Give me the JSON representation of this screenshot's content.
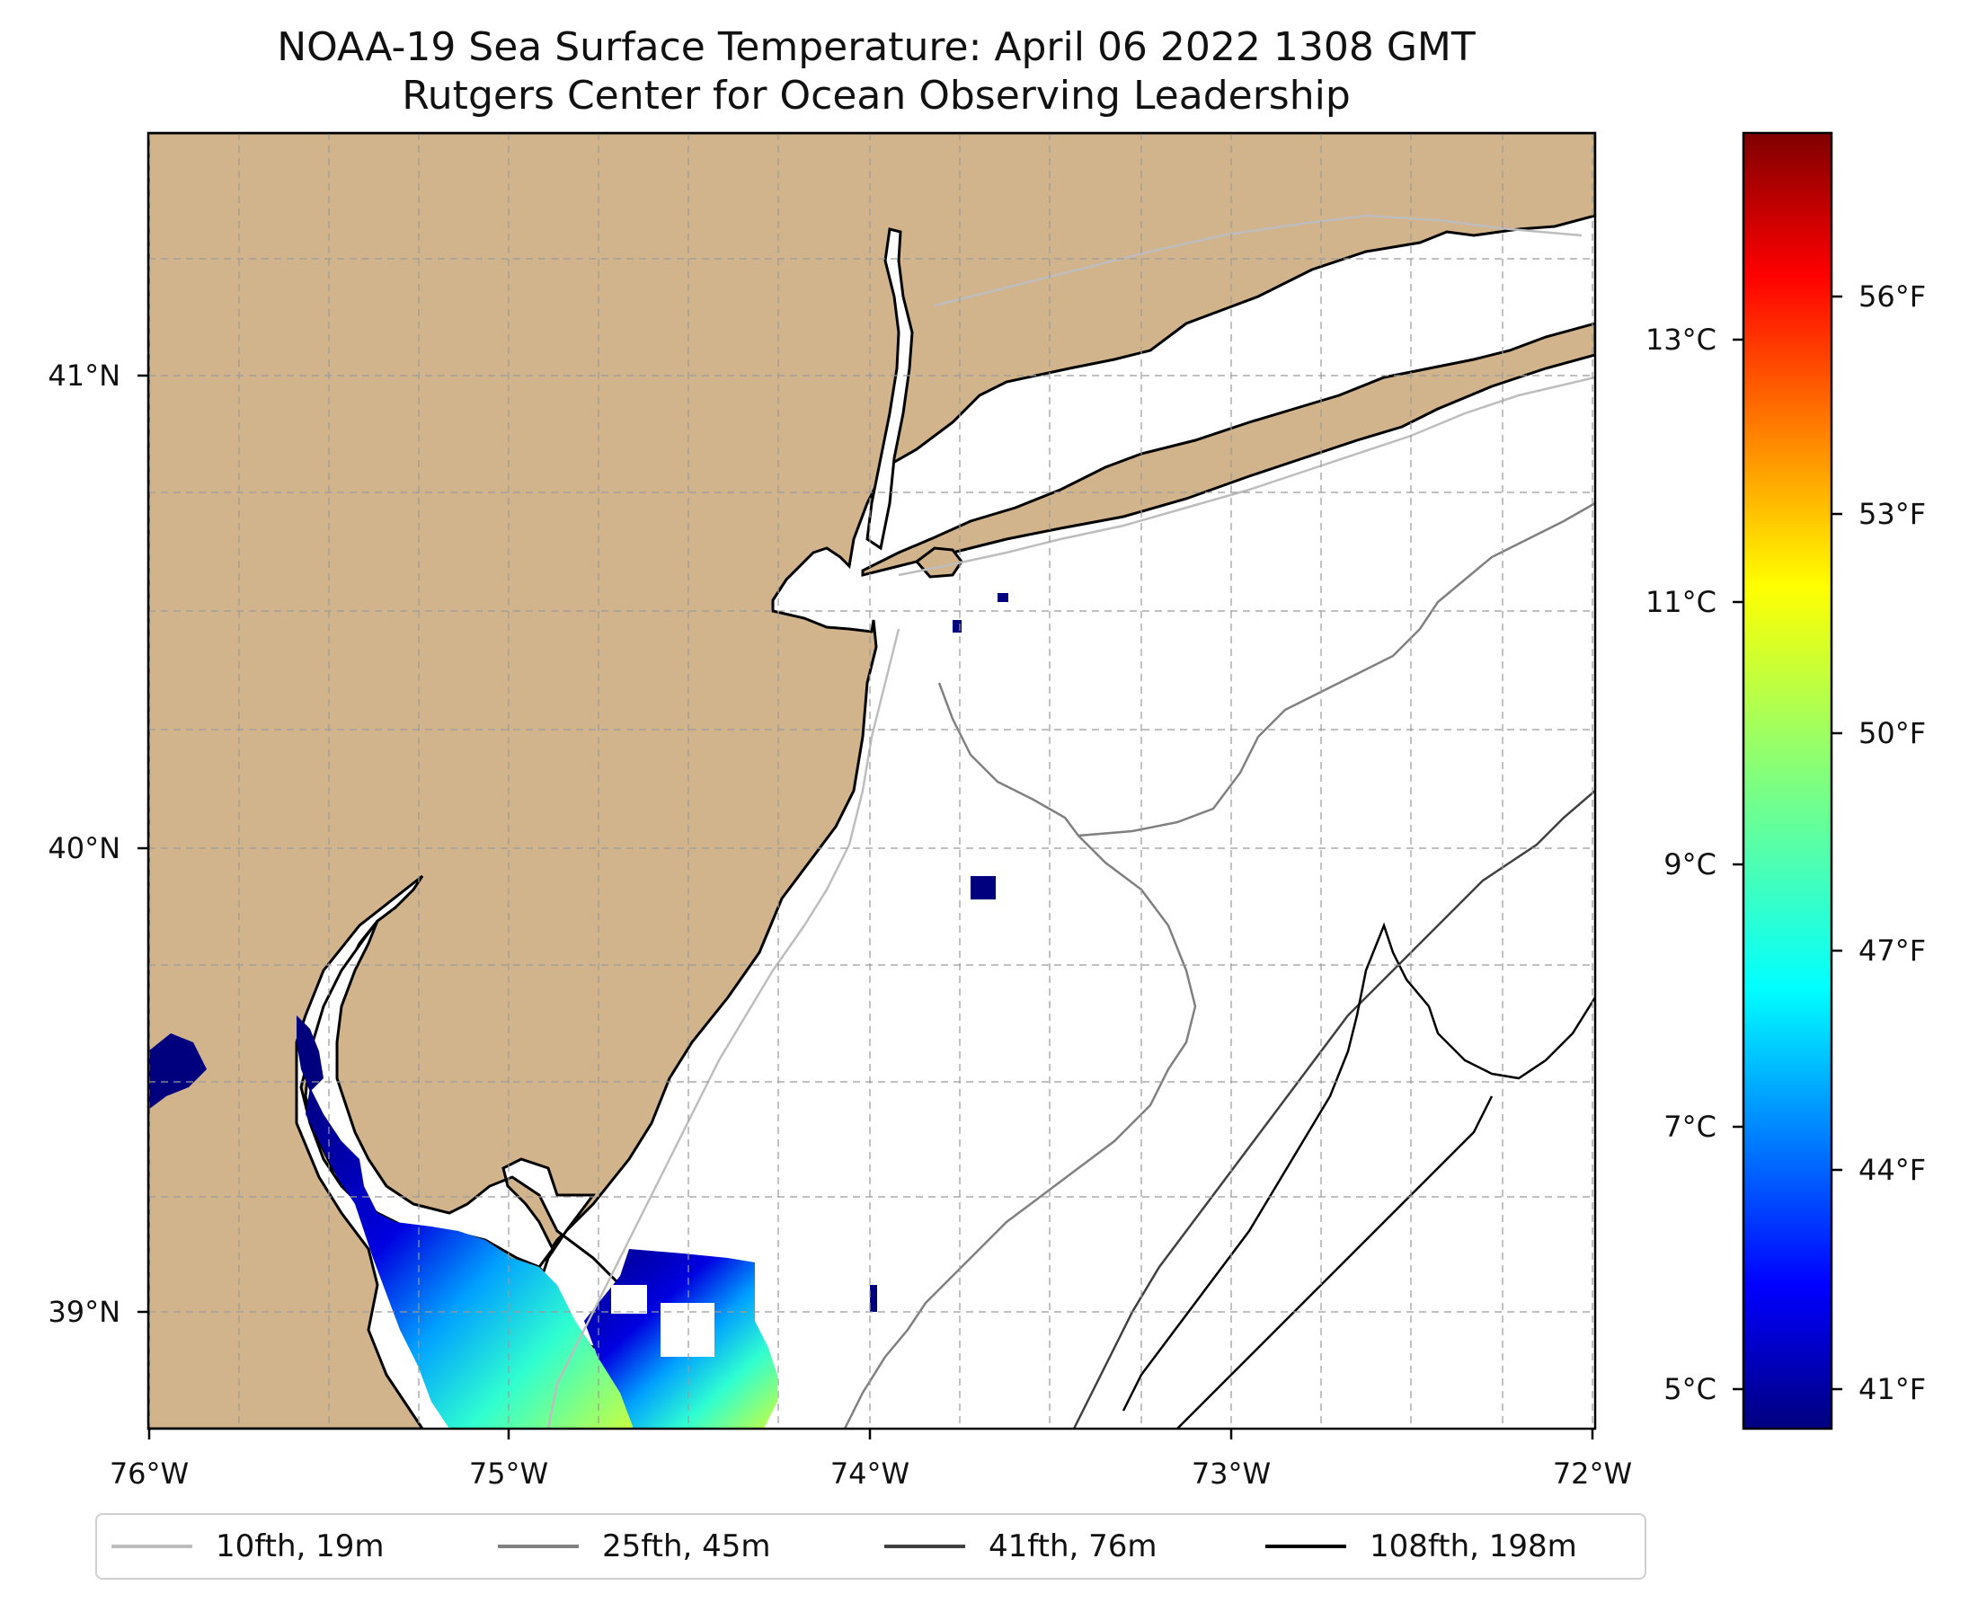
{
  "title": {
    "line1": "NOAA-19 Sea Surface Temperature: April 06 2022 1308 GMT",
    "line2": "Rutgers Center for Ocean Observing Leadership"
  },
  "map": {
    "longitude_ticks": [
      "76°W",
      "75°W",
      "74°W",
      "73°W",
      "72°W"
    ],
    "latitude_ticks": [
      "41°N",
      "40°N",
      "39°N"
    ],
    "land_color": "#d2b48c",
    "water_color": "#ffffff",
    "gridlines": "dashed"
  },
  "colorbar": {
    "colormap": "jet",
    "celsius_labels": [
      "13°C",
      "11°C",
      "9°C",
      "7°C",
      "5°C"
    ],
    "fahrenheit_labels": [
      "56°F",
      "53°F",
      "50°F",
      "47°F",
      "44°F",
      "41°F"
    ],
    "colors": [
      "#00007f",
      "#0000ff",
      "#007fff",
      "#00ffff",
      "#7fff7f",
      "#ffff00",
      "#ff7f00",
      "#ff0000",
      "#7f0000"
    ]
  },
  "legend": {
    "entries": [
      {
        "label": "10fth, 19m",
        "color": "#bdbdbd"
      },
      {
        "label": "25fth, 45m",
        "color": "#808080"
      },
      {
        "label": "41fth, 76m",
        "color": "#404040"
      },
      {
        "label": "108fth, 198m",
        "color": "#000000"
      }
    ]
  }
}
